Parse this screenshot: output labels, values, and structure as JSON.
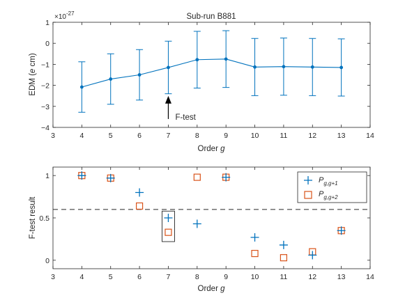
{
  "chart_data": [
    {
      "type": "line",
      "title": "Sub-run B881",
      "xlabel": "Order g",
      "ylabel": "EDM (e cm)",
      "y_exponent_label": "×10^-27",
      "xlim": [
        3,
        14
      ],
      "ylim": [
        -4,
        1
      ],
      "xticks": [
        3,
        4,
        5,
        6,
        7,
        8,
        9,
        10,
        11,
        12,
        13,
        14
      ],
      "yticks": [
        -4,
        -3,
        -2,
        -1,
        0,
        1
      ],
      "grid": false,
      "color": "#0072BD",
      "series": [
        {
          "x": [
            4,
            5,
            6,
            7,
            8,
            9,
            10,
            11,
            12,
            13
          ],
          "y": [
            -2.08,
            -1.7,
            -1.5,
            -1.15,
            -0.78,
            -0.75,
            -1.13,
            -1.11,
            -1.13,
            -1.15
          ],
          "err": [
            1.2,
            1.2,
            1.2,
            1.25,
            1.35,
            1.35,
            1.36,
            1.36,
            1.36,
            1.36
          ]
        }
      ],
      "annotation": {
        "text": "F-test",
        "x": 7,
        "y_tail": -3.6,
        "y_head": -2.5
      }
    },
    {
      "type": "scatter",
      "title": "",
      "xlabel": "Order g",
      "ylabel": "F-test result",
      "xlim": [
        3,
        14
      ],
      "ylim": [
        -0.1,
        1.1
      ],
      "xticks": [
        3,
        4,
        5,
        6,
        7,
        8,
        9,
        10,
        11,
        12,
        13,
        14
      ],
      "yticks": [
        0,
        0.5,
        1
      ],
      "grid": false,
      "threshold": 0.6,
      "legend_position": "top-right",
      "series": [
        {
          "name": "P g,g+1",
          "marker": "plus",
          "color": "#0072BD",
          "x": [
            4,
            5,
            6,
            7,
            8,
            9,
            10,
            11,
            12,
            13
          ],
          "y": [
            1.0,
            0.97,
            0.8,
            0.5,
            0.43,
            0.98,
            0.27,
            0.18,
            0.06,
            0.35
          ]
        },
        {
          "name": "P g,g+2",
          "marker": "square",
          "color": "#D95319",
          "x": [
            4,
            5,
            6,
            7,
            8,
            9,
            10,
            11,
            12,
            13
          ],
          "y": [
            1.0,
            0.97,
            0.64,
            0.33,
            0.98,
            0.98,
            0.08,
            0.03,
            0.1,
            0.35
          ]
        }
      ],
      "highlight_box_at_x": 7
    }
  ]
}
